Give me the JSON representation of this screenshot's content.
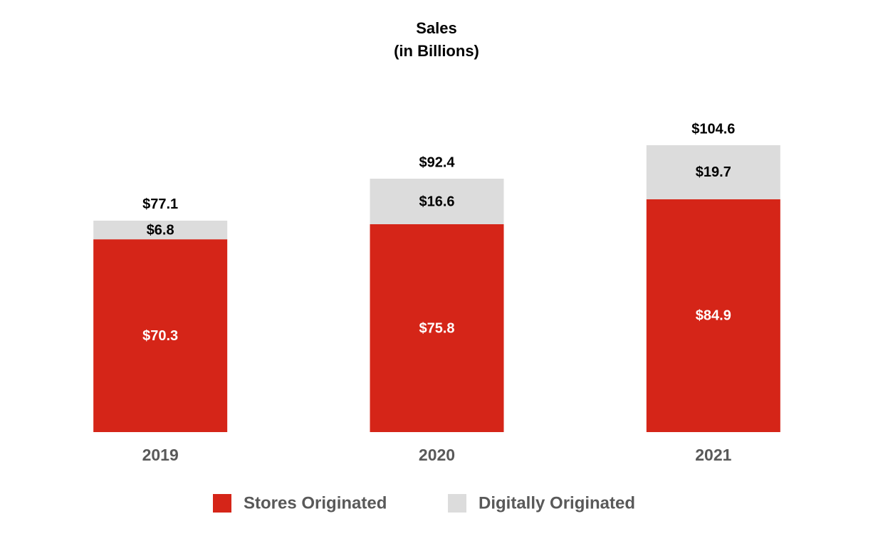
{
  "chart_data": {
    "type": "stacked_bar",
    "title": "Sales",
    "subtitle": "(in Billions)",
    "categories": [
      "2019",
      "2020",
      "2021"
    ],
    "series": [
      {
        "name": "Stores Originated",
        "color": "#d52518",
        "values": [
          70.3,
          75.8,
          84.9
        ],
        "value_labels": [
          "$70.3",
          "$75.8",
          "$84.9"
        ]
      },
      {
        "name": "Digitally Originated",
        "color": "#dcdcdc",
        "values": [
          6.8,
          16.6,
          19.7
        ],
        "value_labels": [
          "$6.8",
          "$16.6",
          "$19.7"
        ]
      }
    ],
    "totals": {
      "values": [
        77.1,
        92.4,
        104.6
      ],
      "value_labels": [
        "$77.1",
        "$92.4",
        "$104.6"
      ]
    },
    "legend": "bottom"
  }
}
